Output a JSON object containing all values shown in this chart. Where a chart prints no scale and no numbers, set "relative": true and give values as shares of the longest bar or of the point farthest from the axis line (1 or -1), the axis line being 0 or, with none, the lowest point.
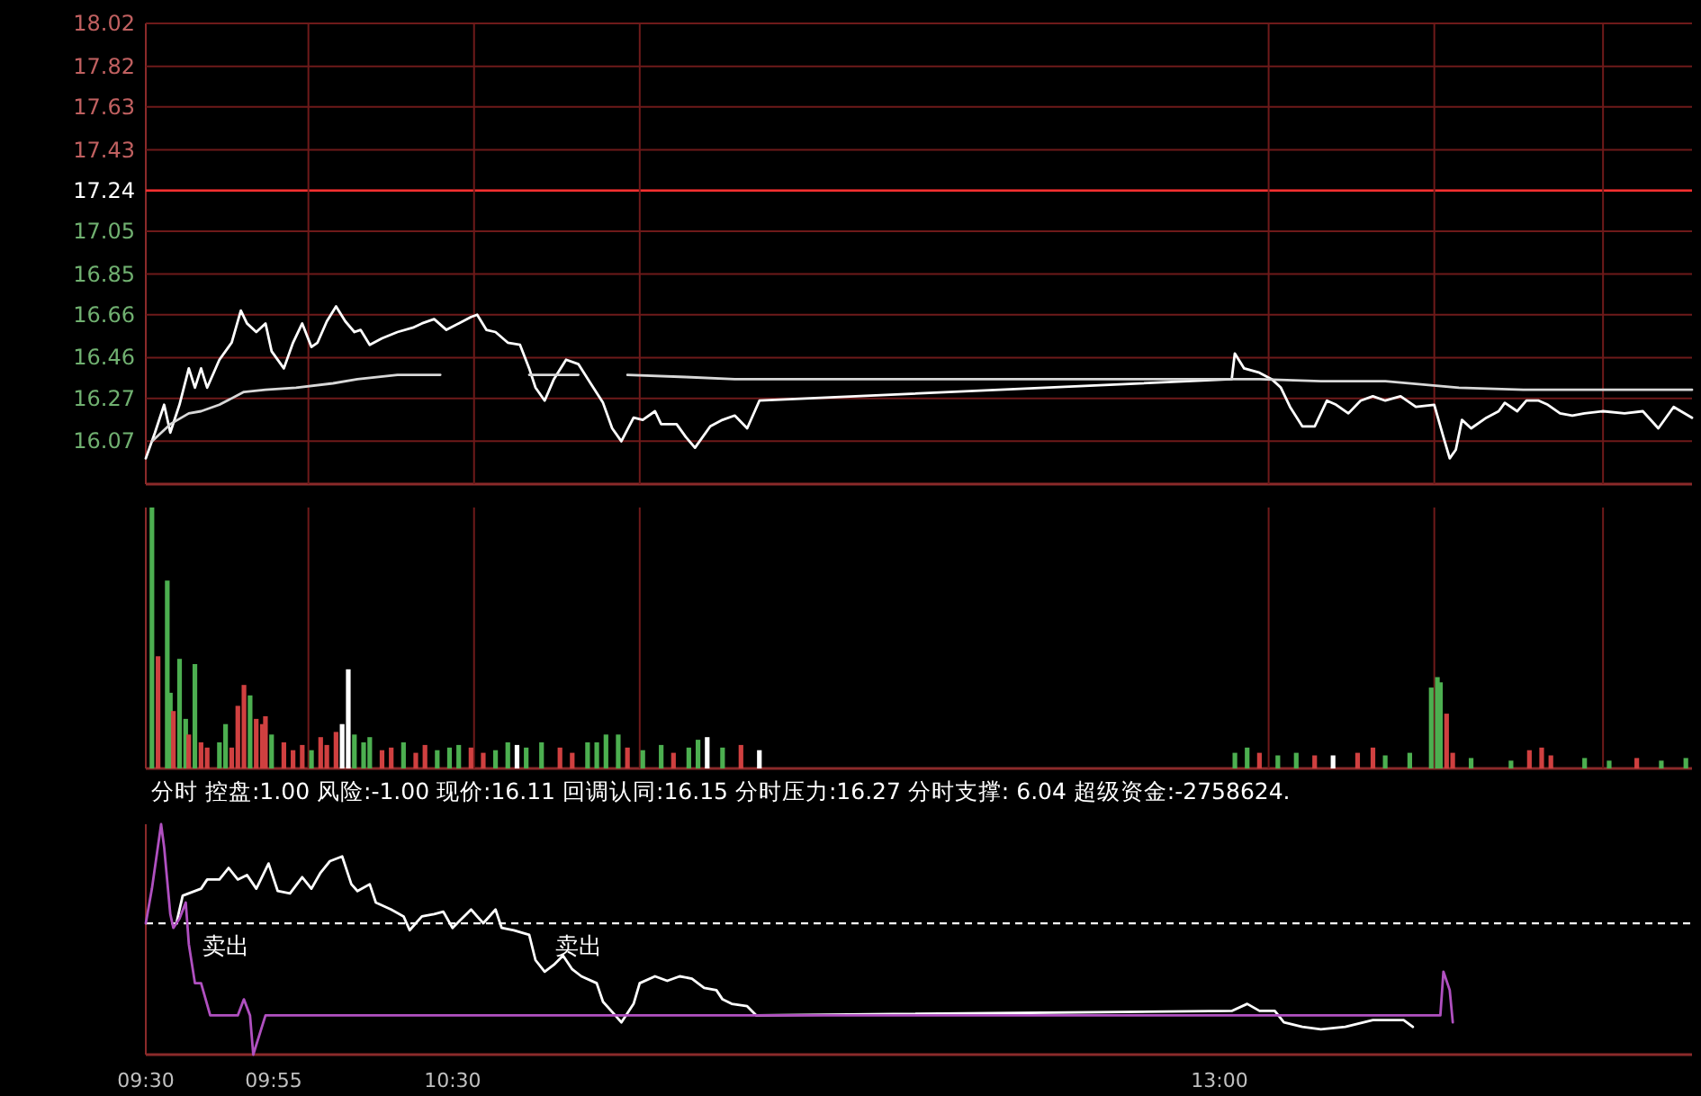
{
  "chart_data": [
    {
      "type": "line",
      "xlim": [
        9.5,
        14.54
      ],
      "ylim": [
        15.87,
        18.02
      ],
      "yticks": [
        16.07,
        16.27,
        16.46,
        16.66,
        16.85,
        17.05,
        17.24,
        17.43,
        17.63,
        17.82,
        18.02
      ],
      "grid": "y",
      "tick_labels": "y",
      "ref_lines": [
        {
          "axis": "y",
          "value": 17.24,
          "color": "#ff3030"
        },
        {
          "axis": "x",
          "value": 10.03,
          "color": "#6e1a1a"
        },
        {
          "axis": "x",
          "value": 10.57,
          "color": "#6e1a1a"
        },
        {
          "axis": "x",
          "value": 11.11,
          "color": "#6e1a1a"
        },
        {
          "axis": "x",
          "value": 13.16,
          "color": "#6e1a1a"
        },
        {
          "axis": "x",
          "value": 13.7,
          "color": "#6e1a1a"
        },
        {
          "axis": "x",
          "value": 14.25,
          "color": "#6e1a1a"
        }
      ],
      "series": [
        {
          "color": "#ffffff",
          "x": [
            9.5,
            9.53,
            9.56,
            9.58,
            9.61,
            9.64,
            9.66,
            9.68,
            9.7,
            9.74,
            9.78,
            9.81,
            9.83,
            9.86,
            9.89,
            9.91,
            9.95,
            9.98,
            10.01,
            10.04,
            10.06,
            10.09,
            10.12,
            10.15,
            10.18,
            10.2,
            10.23,
            10.27,
            10.32,
            10.37,
            10.4,
            10.44,
            10.48,
            10.52,
            10.56,
            10.58,
            10.61,
            10.64,
            10.68,
            10.72,
            10.75,
            10.77,
            10.8,
            10.83,
            10.87,
            10.91,
            10.95,
            10.99,
            11.02,
            11.05,
            11.09,
            11.12,
            11.16,
            11.18,
            11.23,
            11.26,
            11.29,
            11.34,
            11.38,
            11.42,
            11.46,
            11.5,
            13.04,
            13.05,
            13.08,
            13.13,
            13.17,
            13.2,
            13.23,
            13.27,
            13.31,
            13.35,
            13.38,
            13.42,
            13.46,
            13.5,
            13.54,
            13.59,
            13.64,
            13.7,
            13.73,
            13.75,
            13.77,
            13.79,
            13.82,
            13.87,
            13.91,
            13.93,
            13.97,
            14.0,
            14.04,
            14.07,
            14.11,
            14.15,
            14.19,
            14.25,
            14.32,
            14.38,
            14.43,
            14.48,
            14.54
          ],
          "values": [
            15.99,
            16.11,
            16.24,
            16.11,
            16.24,
            16.41,
            16.32,
            16.41,
            16.32,
            16.45,
            16.53,
            16.68,
            16.62,
            16.58,
            16.62,
            16.49,
            16.41,
            16.53,
            16.62,
            16.51,
            16.53,
            16.63,
            16.7,
            16.63,
            16.58,
            16.59,
            16.52,
            16.55,
            16.58,
            16.6,
            16.62,
            16.64,
            16.59,
            16.62,
            16.65,
            16.66,
            16.59,
            16.58,
            16.53,
            16.52,
            16.41,
            16.32,
            16.26,
            16.36,
            16.45,
            16.43,
            16.34,
            16.25,
            16.13,
            16.07,
            16.18,
            16.17,
            16.21,
            16.15,
            16.15,
            16.09,
            16.04,
            16.14,
            16.17,
            16.19,
            16.13,
            16.26,
            16.36,
            16.48,
            16.41,
            16.39,
            16.36,
            16.32,
            16.23,
            16.14,
            16.14,
            16.26,
            16.24,
            16.2,
            16.26,
            16.28,
            16.26,
            16.28,
            16.23,
            16.24,
            16.09,
            15.99,
            16.03,
            16.17,
            16.13,
            16.18,
            16.21,
            16.25,
            16.21,
            16.26,
            16.26,
            16.24,
            16.2,
            16.19,
            16.2,
            16.21,
            16.2,
            16.21,
            16.13,
            16.23,
            16.18
          ]
        },
        {
          "color": "#d8d8d8",
          "x": [
            9.52,
            9.58,
            9.64,
            9.68,
            9.74,
            9.82,
            9.89,
            9.99,
            10.11,
            10.19,
            10.32,
            10.46,
            10.58,
            10.75,
            10.91,
            10.99,
            11.07,
            11.26,
            11.42,
            13.13,
            13.33,
            13.54,
            13.78,
            13.99,
            14.36,
            14.54
          ],
          "values": [
            16.07,
            16.15,
            16.2,
            16.21,
            16.24,
            16.3,
            16.31,
            16.32,
            16.34,
            16.36,
            16.38,
            16.38,
            null,
            16.38,
            16.38,
            null,
            16.38,
            16.37,
            16.36,
            16.36,
            16.35,
            16.35,
            16.32,
            16.31,
            16.31,
            16.31
          ]
        }
      ]
    },
    {
      "type": "bar",
      "relative": true,
      "xlim": [
        9.5,
        14.54
      ],
      "tick_labels": false,
      "ref_lines": [
        {
          "axis": "x",
          "value": 10.03,
          "color": "#6e1a1a"
        },
        {
          "axis": "x",
          "value": 10.57,
          "color": "#6e1a1a"
        },
        {
          "axis": "x",
          "value": 11.11,
          "color": "#6e1a1a"
        },
        {
          "axis": "x",
          "value": 13.16,
          "color": "#6e1a1a"
        },
        {
          "axis": "x",
          "value": 13.7,
          "color": "#6e1a1a"
        },
        {
          "axis": "x",
          "value": 14.25,
          "color": "#6e1a1a"
        }
      ],
      "x": [
        9.52,
        9.54,
        9.57,
        9.58,
        9.59,
        9.61,
        9.63,
        9.64,
        9.66,
        9.68,
        9.7,
        9.74,
        9.76,
        9.78,
        9.8,
        9.82,
        9.84,
        9.86,
        9.88,
        9.89,
        9.91,
        9.95,
        9.98,
        10.01,
        10.04,
        10.07,
        10.09,
        10.12,
        10.14,
        10.16,
        10.18,
        10.21,
        10.23,
        10.27,
        10.3,
        10.34,
        10.38,
        10.41,
        10.45,
        10.49,
        10.52,
        10.56,
        10.6,
        10.64,
        10.68,
        10.71,
        10.74,
        10.79,
        10.85,
        10.89,
        10.94,
        10.97,
        11.0,
        11.04,
        11.07,
        11.12,
        11.18,
        11.22,
        11.27,
        11.3,
        11.33,
        11.38,
        11.44,
        11.5,
        13.05,
        13.09,
        13.13,
        13.19,
        13.25,
        13.31,
        13.37,
        13.45,
        13.5,
        13.54,
        13.62,
        13.69,
        13.71,
        13.72,
        13.74,
        13.76,
        13.82,
        13.95,
        14.01,
        14.05,
        14.08,
        14.19,
        14.27,
        14.36,
        14.44,
        14.52
      ],
      "values": [
        1.0,
        0.43,
        0.72,
        0.29,
        0.22,
        0.42,
        0.19,
        0.13,
        0.4,
        0.1,
        0.08,
        0.1,
        0.17,
        0.08,
        0.24,
        0.32,
        0.28,
        0.19,
        0.17,
        0.2,
        0.13,
        0.1,
        0.07,
        0.09,
        0.07,
        0.12,
        0.09,
        0.14,
        0.17,
        0.38,
        0.13,
        0.1,
        0.12,
        0.07,
        0.08,
        0.1,
        0.06,
        0.09,
        0.07,
        0.08,
        0.09,
        0.08,
        0.06,
        0.07,
        0.1,
        0.09,
        0.08,
        0.1,
        0.08,
        0.06,
        0.1,
        0.1,
        0.13,
        0.13,
        0.08,
        0.07,
        0.09,
        0.06,
        0.08,
        0.11,
        0.12,
        0.08,
        0.09,
        0.07,
        0.06,
        0.08,
        0.06,
        0.05,
        0.06,
        0.05,
        0.05,
        0.06,
        0.08,
        0.05,
        0.06,
        0.31,
        0.35,
        0.33,
        0.21,
        0.06,
        0.04,
        0.03,
        0.07,
        0.08,
        0.05,
        0.04,
        0.03,
        0.04,
        0.03,
        0.04
      ],
      "colors": [
        "#4caf50",
        "#d04040",
        "#4caf50",
        "#4caf50",
        "#d04040",
        "#4caf50",
        "#4caf50",
        "#d04040",
        "#4caf50",
        "#d04040",
        "#d04040",
        "#4caf50",
        "#4caf50",
        "#d04040",
        "#d04040",
        "#d04040",
        "#4caf50",
        "#d04040",
        "#d04040",
        "#d04040",
        "#4caf50",
        "#d04040",
        "#d04040",
        "#d04040",
        "#4caf50",
        "#d04040",
        "#d04040",
        "#d04040",
        "#ffffff",
        "#ffffff",
        "#4caf50",
        "#4caf50",
        "#4caf50",
        "#d04040",
        "#d04040",
        "#4caf50",
        "#d04040",
        "#d04040",
        "#4caf50",
        "#4caf50",
        "#4caf50",
        "#d04040",
        "#d04040",
        "#4caf50",
        "#4caf50",
        "#ffffff",
        "#4caf50",
        "#4caf50",
        "#d04040",
        "#d04040",
        "#4caf50",
        "#4caf50",
        "#4caf50",
        "#4caf50",
        "#d04040",
        "#4caf50",
        "#4caf50",
        "#d04040",
        "#4caf50",
        "#4caf50",
        "#ffffff",
        "#4caf50",
        "#d04040",
        "#ffffff",
        "#4caf50",
        "#4caf50",
        "#d04040",
        "#4caf50",
        "#4caf50",
        "#d04040",
        "#ffffff",
        "#d04040",
        "#d04040",
        "#4caf50",
        "#4caf50",
        "#4caf50",
        "#4caf50",
        "#4caf50",
        "#d04040",
        "#d04040",
        "#4caf50",
        "#4caf50",
        "#d04040",
        "#d04040",
        "#d04040",
        "#4caf50",
        "#4caf50",
        "#d04040",
        "#4caf50",
        "#4caf50"
      ]
    },
    {
      "type": "line",
      "relative": true,
      "title": "分时  控盘:1.00 风险:-1.00 现价:16.11 回调认同:16.15 分时压力:16.27 分时支撑: 6.04 超级资金:-2758624.",
      "xlim": [
        9.5,
        14.54
      ],
      "xticks": [
        {
          "value": 9.5,
          "label": "09:30"
        },
        {
          "value": 9.9167,
          "label": "09:55"
        },
        {
          "value": 10.5,
          "label": "10:30"
        },
        {
          "value": 13,
          "label": "13:00"
        }
      ],
      "tick_labels": "x",
      "ref_lines": [
        {
          "axis": "y",
          "value": 0.57,
          "color": "#ffffff",
          "line_style": "dashed"
        }
      ],
      "annotations": [
        {
          "text": "卖出",
          "x": 9.76,
          "y": 0.57
        },
        {
          "text": "卖出",
          "x": 10.91,
          "y": 0.57
        }
      ],
      "series": [
        {
          "color": "#ffffff",
          "x": [
            9.6,
            9.62,
            9.68,
            9.7,
            9.74,
            9.77,
            9.8,
            9.83,
            9.86,
            9.9,
            9.93,
            9.97,
            10.01,
            10.04,
            10.07,
            10.1,
            10.14,
            10.17,
            10.19,
            10.23,
            10.25,
            10.3,
            10.34,
            10.36,
            10.4,
            10.44,
            10.47,
            10.5,
            10.53,
            10.56,
            10.6,
            10.64,
            10.66,
            10.7,
            10.75,
            10.77,
            10.8,
            10.83,
            10.86,
            10.89,
            10.92,
            10.97,
            10.99,
            11.03,
            11.05,
            11.09,
            11.11,
            11.16,
            11.2,
            11.24,
            11.28,
            11.32,
            11.36,
            11.38,
            11.41,
            11.46,
            11.49,
            13.04,
            13.09,
            13.13,
            13.18,
            13.21,
            13.27,
            13.33,
            13.41,
            13.5,
            13.6,
            13.63
          ],
          "values": [
            0.57,
            0.69,
            0.72,
            0.76,
            0.76,
            0.81,
            0.76,
            0.78,
            0.72,
            0.83,
            0.71,
            0.7,
            0.77,
            0.72,
            0.79,
            0.84,
            0.86,
            0.74,
            0.71,
            0.74,
            0.66,
            0.63,
            0.6,
            0.54,
            0.6,
            0.61,
            0.62,
            0.55,
            0.59,
            0.63,
            0.57,
            0.63,
            0.55,
            0.54,
            0.52,
            0.41,
            0.36,
            0.39,
            0.43,
            0.37,
            0.34,
            0.31,
            0.23,
            0.17,
            0.14,
            0.22,
            0.31,
            0.34,
            0.32,
            0.34,
            0.33,
            0.29,
            0.28,
            0.24,
            0.22,
            0.21,
            0.17,
            0.19,
            0.22,
            0.19,
            0.19,
            0.14,
            0.12,
            0.11,
            0.12,
            0.15,
            0.15,
            0.12
          ]
        },
        {
          "color": "#b050c0",
          "x": [
            9.5,
            9.52,
            9.55,
            9.56,
            9.58,
            9.59,
            9.61,
            9.63,
            9.64,
            9.66,
            9.68,
            9.71,
            9.74,
            9.8,
            9.82,
            9.84,
            9.85,
            9.89,
            9.91,
            13.72,
            13.73,
            13.75,
            13.76
          ],
          "values": [
            0.57,
            0.72,
            1.0,
            0.9,
            0.61,
            0.55,
            0.59,
            0.66,
            0.48,
            0.31,
            0.31,
            0.17,
            0.17,
            0.17,
            0.24,
            0.17,
            0,
            0.17,
            0.17,
            0.17,
            0.36,
            0.28,
            0.14
          ]
        }
      ]
    }
  ]
}
